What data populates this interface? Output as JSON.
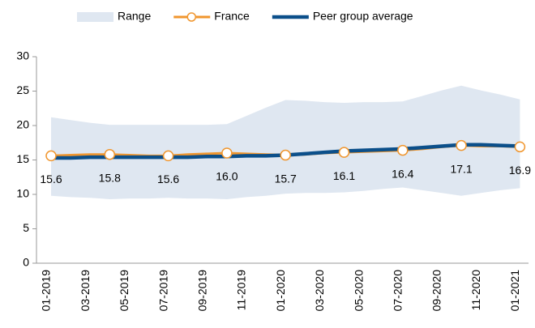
{
  "chart_data": {
    "type": "line",
    "categories": [
      "01-2019",
      null,
      "03-2019",
      null,
      "05-2019",
      null,
      "07-2019",
      null,
      "09-2019",
      null,
      "11-2019",
      null,
      "01-2020",
      null,
      "03-2020",
      null,
      "05-2020",
      null,
      "07-2020",
      null,
      "09-2020",
      null,
      "11-2020",
      null,
      "01-2021"
    ],
    "series": [
      {
        "name": "Range",
        "color": "#dfe7f1",
        "kind": "band",
        "lower": [
          9.8,
          9.6,
          9.5,
          9.3,
          9.4,
          9.4,
          9.5,
          9.4,
          9.4,
          9.3,
          9.6,
          9.8,
          10.1,
          10.2,
          10.2,
          10.3,
          10.5,
          10.8,
          11.0,
          10.6,
          10.2,
          9.8,
          10.2,
          10.6,
          10.9
        ],
        "upper": [
          21.2,
          20.8,
          20.4,
          20.1,
          20.1,
          20.1,
          20.1,
          20.1,
          20.1,
          20.2,
          21.4,
          22.6,
          23.7,
          23.6,
          23.4,
          23.3,
          23.4,
          23.4,
          23.5,
          24.3,
          25.1,
          25.8,
          25.1,
          24.5,
          23.8
        ]
      },
      {
        "name": "France",
        "color": "#f0962e",
        "kind": "line",
        "markers": true,
        "values": [
          15.6,
          15.7,
          15.8,
          15.8,
          15.7,
          15.6,
          15.6,
          15.8,
          15.9,
          16.0,
          15.9,
          15.8,
          15.7,
          15.8,
          16.0,
          16.1,
          16.2,
          16.3,
          16.4,
          16.6,
          16.9,
          17.1,
          17.0,
          17.0,
          16.9
        ],
        "value_labels": [
          "15.6",
          null,
          null,
          "15.8",
          null,
          null,
          "15.6",
          null,
          null,
          "16.0",
          null,
          null,
          "15.7",
          null,
          null,
          "16.1",
          null,
          null,
          "16.4",
          null,
          null,
          "17.1",
          null,
          null,
          "16.9"
        ]
      },
      {
        "name": "Peer group average",
        "color": "#0b4f8a",
        "kind": "line",
        "markers": false,
        "values": [
          15.3,
          15.3,
          15.4,
          15.4,
          15.4,
          15.4,
          15.4,
          15.4,
          15.5,
          15.5,
          15.6,
          15.6,
          15.7,
          15.9,
          16.1,
          16.3,
          16.4,
          16.5,
          16.6,
          16.8,
          17.0,
          17.2,
          17.2,
          17.1,
          17.0
        ]
      }
    ],
    "ylim": [
      0,
      30
    ],
    "yticks": [
      0,
      5,
      10,
      15,
      20,
      25,
      30
    ],
    "legend": "top"
  }
}
